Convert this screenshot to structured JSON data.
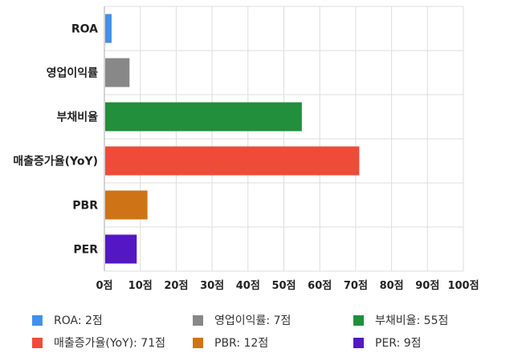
{
  "chart_data": {
    "type": "bar",
    "orientation": "horizontal",
    "categories": [
      "ROA",
      "영업이익률",
      "부채비율",
      "매출증가율(YoY)",
      "PBR",
      "PER"
    ],
    "values": [
      2,
      7,
      55,
      71,
      12,
      9
    ],
    "colors": [
      "#4390e8",
      "#888888",
      "#218f3c",
      "#ee4c38",
      "#cf7317",
      "#5417c4"
    ],
    "xlim": [
      0,
      100
    ],
    "xticks": [
      "0점",
      "10점",
      "20점",
      "30점",
      "40점",
      "50점",
      "60점",
      "70점",
      "80점",
      "90점",
      "100점"
    ],
    "grid": true,
    "legend_position": "bottom",
    "legend": [
      "ROA: 2점",
      "영업이익률: 7점",
      "부채비율: 55점",
      "매출증가율(YoY): 71점",
      "PBR: 12점",
      "PER: 9점"
    ],
    "title": "",
    "xlabel": "",
    "ylabel": ""
  }
}
